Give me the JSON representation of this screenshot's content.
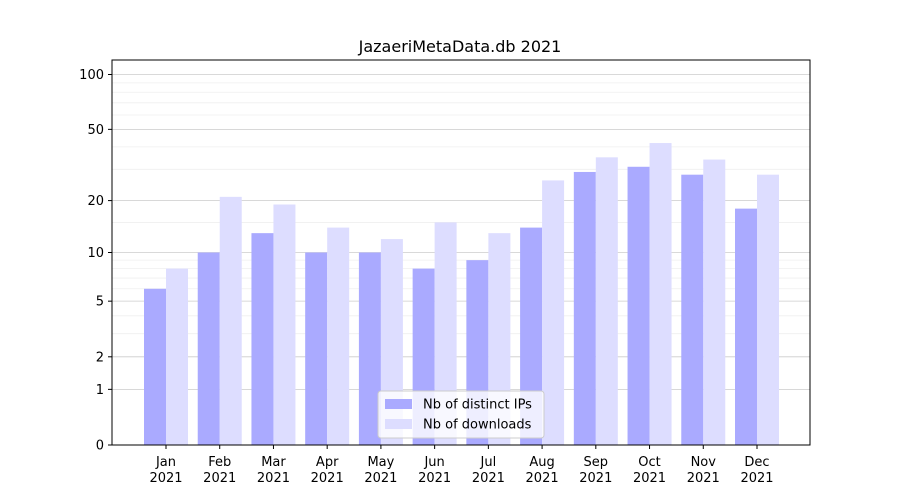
{
  "chart_data": {
    "type": "bar",
    "title": "JazaeriMetaData.db 2021",
    "xlabel": "",
    "ylabel": "",
    "y_scale": "symlog",
    "ylim": [
      0,
      120
    ],
    "yticks": [
      0,
      1,
      2,
      5,
      10,
      20,
      50,
      100
    ],
    "categories": [
      "Jan\n2021",
      "Feb\n2021",
      "Mar\n2021",
      "Apr\n2021",
      "May\n2021",
      "Jun\n2021",
      "Jul\n2021",
      "Aug\n2021",
      "Sep\n2021",
      "Oct\n2021",
      "Nov\n2021",
      "Dec\n2021"
    ],
    "series": [
      {
        "name": "Nb of distinct IPs",
        "color": "#aaaaff",
        "values": [
          6,
          10,
          13,
          10,
          10,
          8,
          9,
          14,
          29,
          31,
          28,
          18
        ]
      },
      {
        "name": "Nb of downloads",
        "color": "#ddddff",
        "values": [
          8,
          21,
          19,
          14,
          12,
          15,
          13,
          26,
          35,
          42,
          34,
          28
        ]
      }
    ],
    "grid": true,
    "legend_position": "lower-center"
  }
}
